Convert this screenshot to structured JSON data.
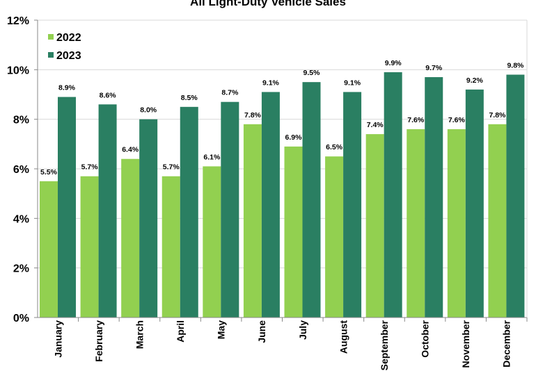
{
  "chart_data": {
    "type": "bar",
    "title": "All Light-Duty Vehicle Sales",
    "xlabel": "",
    "ylabel": "",
    "ylim": [
      0,
      12
    ],
    "y_ticks": [
      "0%",
      "2%",
      "4%",
      "6%",
      "8%",
      "10%",
      "12%"
    ],
    "grid": true,
    "legend_position": "top-left",
    "categories": [
      "January",
      "February",
      "March",
      "April",
      "May",
      "June",
      "July",
      "August",
      "September",
      "October",
      "November",
      "December"
    ],
    "series": [
      {
        "name": "2022",
        "color": "#92d050",
        "values": [
          5.5,
          5.7,
          6.4,
          5.7,
          6.1,
          7.8,
          6.9,
          6.5,
          7.4,
          7.6,
          7.6,
          7.8
        ],
        "labels": [
          "5.5%",
          "5.7%",
          "6.4%",
          "5.7%",
          "6.1%",
          "7.8%",
          "6.9%",
          "6.5%",
          "7.4%",
          "7.6%",
          "7.6%",
          "7.8%"
        ]
      },
      {
        "name": "2023",
        "color": "#2a7f62",
        "values": [
          8.9,
          8.6,
          8.0,
          8.5,
          8.7,
          9.1,
          9.5,
          9.1,
          9.9,
          9.7,
          9.2,
          9.8
        ],
        "labels": [
          "8.9%",
          "8.6%",
          "8.0%",
          "8.5%",
          "8.7%",
          "9.1%",
          "9.5%",
          "9.1%",
          "9.9%",
          "9.7%",
          "9.2%",
          "9.8%"
        ]
      }
    ]
  }
}
